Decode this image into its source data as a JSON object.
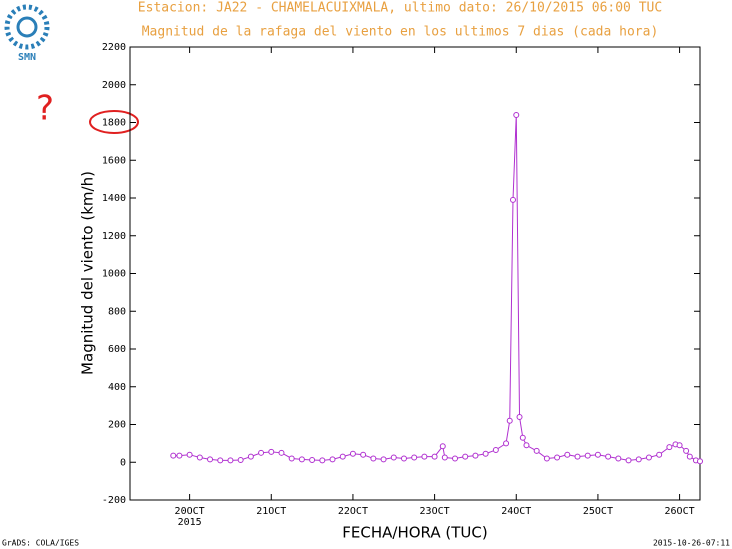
{
  "logo_text": "SMN",
  "annotation": "?",
  "footer_left": "GrADS: COLA/IGES",
  "footer_right": "2015-10-26-07:11",
  "chart_data": {
    "type": "line",
    "title": "Estacion: JA22 - CHAMELACUIXMALA, ultimo dato: 26/10/2015 06:00 TUC",
    "subtitle": "Magnitud de la rafaga del viento en los ultimos 7 dias (cada hora)",
    "x_label": "FECHA/HORA (TUC)",
    "y_label": "Magnitud del viento (km/h)",
    "x_year_label": "2015",
    "x": [
      19.8,
      19.875,
      20.0,
      20.125,
      20.25,
      20.375,
      20.5,
      20.625,
      20.75,
      20.875,
      21.0,
      21.125,
      21.25,
      21.375,
      21.5,
      21.625,
      21.75,
      21.875,
      22.0,
      22.125,
      22.25,
      22.375,
      22.5,
      22.625,
      22.75,
      22.875,
      23.0,
      23.1,
      23.125,
      23.25,
      23.375,
      23.5,
      23.625,
      23.75,
      23.875,
      23.92,
      23.96,
      24.0,
      24.04,
      24.08,
      24.125,
      24.25,
      24.375,
      24.5,
      24.625,
      24.75,
      24.875,
      25.0,
      25.125,
      25.25,
      25.375,
      25.5,
      25.625,
      25.75,
      25.875,
      25.95,
      26.0,
      26.08,
      26.125,
      26.2,
      26.25
    ],
    "series": [
      {
        "name": "Magnitud del viento",
        "color": "#b030d0",
        "values": [
          35,
          35,
          40,
          25,
          15,
          10,
          10,
          12,
          30,
          50,
          55,
          50,
          20,
          15,
          12,
          10,
          15,
          30,
          45,
          40,
          20,
          15,
          25,
          20,
          25,
          30,
          30,
          85,
          25,
          20,
          30,
          35,
          45,
          65,
          100,
          220,
          1390,
          1840,
          240,
          130,
          90,
          60,
          20,
          25,
          40,
          30,
          35,
          40,
          30,
          20,
          10,
          15,
          25,
          40,
          80,
          95,
          90,
          60,
          30,
          10,
          5
        ]
      }
    ],
    "xlim": [
      19.27,
      26.25
    ],
    "xticks": [
      {
        "value": 20,
        "label": "20OCT"
      },
      {
        "value": 21,
        "label": "21OCT"
      },
      {
        "value": 22,
        "label": "22OCT"
      },
      {
        "value": 23,
        "label": "23OCT"
      },
      {
        "value": 24,
        "label": "24OCT"
      },
      {
        "value": 25,
        "label": "25OCT"
      },
      {
        "value": 26,
        "label": "26OCT"
      }
    ],
    "ylim": [
      -200,
      2200
    ],
    "yticks": [
      -200,
      0,
      200,
      400,
      600,
      800,
      1000,
      1200,
      1400,
      1600,
      1800,
      2000,
      2200
    ],
    "grid": false
  }
}
